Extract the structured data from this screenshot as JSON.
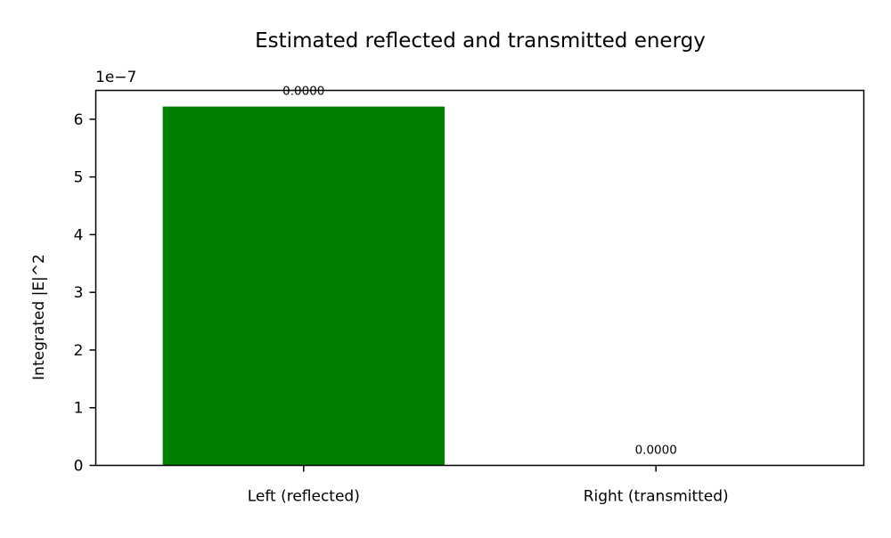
{
  "chart_data": {
    "type": "bar",
    "title": "Estimated reflected and transmitted energy",
    "xlabel": "",
    "ylabel": "Integrated |E|^2",
    "y_offset_label": "1e−7",
    "categories": [
      "Left (reflected)",
      "Right (transmitted)"
    ],
    "values": [
      6.22e-07,
      1e-11
    ],
    "data_labels": [
      "0.0000",
      "0.0000"
    ],
    "bar_color": "#008000",
    "ylim": [
      0,
      6.5e-07
    ],
    "y_tick_values": [
      0,
      1e-07,
      2e-07,
      3e-07,
      4e-07,
      5e-07,
      6e-07
    ],
    "y_tick_labels": [
      "0",
      "1",
      "2",
      "3",
      "4",
      "5",
      "6"
    ],
    "grid": false,
    "legend": "none"
  }
}
